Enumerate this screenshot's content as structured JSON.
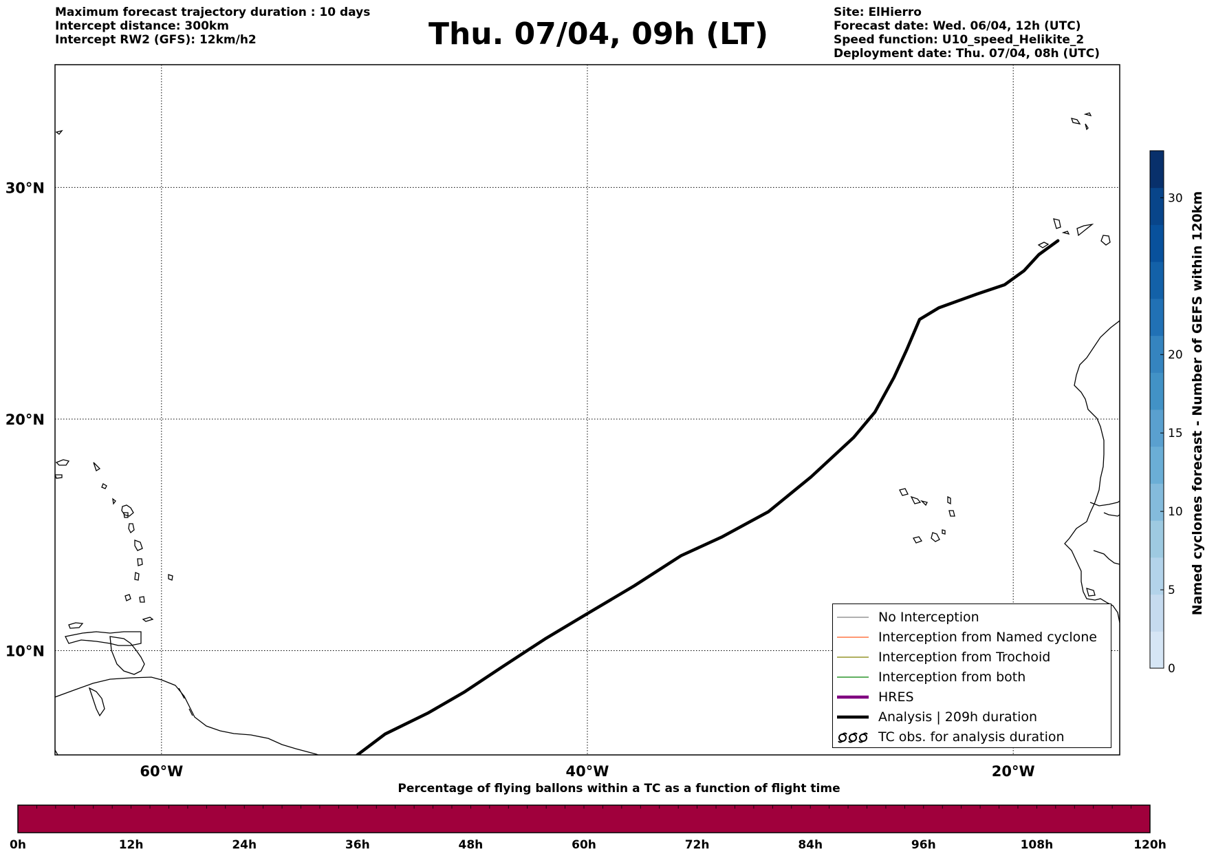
{
  "header": {
    "left_lines": [
      "Maximum forecast trajectory duration : 10 days",
      "Intercept distance: 300km",
      "Intercept RW2 (GFS):  12km/h2"
    ],
    "title": "Thu. 07/04, 09h (LT)",
    "right_lines": [
      "Site: ElHierro",
      "Forecast date: Wed. 06/04, 12h (UTC)",
      "Speed function: U10_speed_Helikite_2",
      "Deployment date: Thu. 07/04, 08h (UTC)"
    ]
  },
  "map": {
    "lat_labels": [
      {
        "lat": 30,
        "label": "30°N"
      },
      {
        "lat": 20,
        "label": "20°N"
      },
      {
        "lat": 10,
        "label": "10°N"
      }
    ],
    "lon_labels": [
      {
        "lon": -60,
        "label": "60°W"
      },
      {
        "lon": -40,
        "label": "40°W"
      },
      {
        "lon": -20,
        "label": "20°W"
      }
    ],
    "extent": {
      "lon_min": -65,
      "lon_max": -15,
      "lat_min": 5.5,
      "lat_max": 35.3
    },
    "trajectory": [
      [
        -50.8,
        5.5
      ],
      [
        -49.5,
        6.4
      ],
      [
        -47.5,
        7.3
      ],
      [
        -45.8,
        8.2
      ],
      [
        -44.0,
        9.3
      ],
      [
        -42.0,
        10.5
      ],
      [
        -40.0,
        11.6
      ],
      [
        -37.8,
        12.8
      ],
      [
        -35.6,
        14.1
      ],
      [
        -33.7,
        14.9
      ],
      [
        -31.5,
        16.0
      ],
      [
        -29.5,
        17.5
      ],
      [
        -27.5,
        19.2
      ],
      [
        -26.5,
        20.3
      ],
      [
        -25.6,
        21.8
      ],
      [
        -25.0,
        23.0
      ],
      [
        -24.4,
        24.3
      ],
      [
        -23.5,
        24.8
      ],
      [
        -21.7,
        25.4
      ],
      [
        -20.4,
        25.8
      ],
      [
        -19.5,
        26.4
      ],
      [
        -18.8,
        27.1
      ],
      [
        -17.9,
        27.7
      ]
    ],
    "colors": {
      "trajectory": "#000000",
      "hres": "#800080",
      "no_interception": "#808080",
      "named_cyclone": "#ff5a1e",
      "trochoid": "#808000",
      "both": "#008000"
    }
  },
  "legend": {
    "items": [
      {
        "label": "No Interception",
        "swatch": "thin-line",
        "color": "#808080"
      },
      {
        "label": "Interception from Named cyclone",
        "swatch": "thin-line",
        "color": "#ff5a1e"
      },
      {
        "label": "Interception from Trochoid",
        "swatch": "thin-line",
        "color": "#808000"
      },
      {
        "label": "Interception from both",
        "swatch": "thin-line",
        "color": "#008000"
      },
      {
        "label": "HRES",
        "swatch": "thick-line",
        "color": "#800080"
      },
      {
        "label": "Analysis | 209h duration",
        "swatch": "thick-line",
        "color": "#000000"
      },
      {
        "label": "TC obs. for analysis duration",
        "swatch": "cyclone-icons",
        "color": "#000000"
      }
    ]
  },
  "colorbar": {
    "title": "Named cyclones forecast - Number of GEFS within 120km",
    "ticks": [
      0,
      5,
      10,
      15,
      20,
      30
    ],
    "max": 33,
    "colors": [
      "#d6e6f5",
      "#c6dbef",
      "#b3d3ea",
      "#9ecae1",
      "#84bbdc",
      "#6baed6",
      "#5aa0cf",
      "#4292c6",
      "#3584bf",
      "#2171b5",
      "#1361a8",
      "#08519c",
      "#08458a",
      "#08306b"
    ]
  },
  "percentage_bar": {
    "title": "Percentage of flying ballons within a TC as a function of flight time",
    "ticks": [
      "0h",
      "12h",
      "24h",
      "36h",
      "48h",
      "60h",
      "72h",
      "84h",
      "96h",
      "108h",
      "120h"
    ],
    "fill_color": "#a0003c"
  }
}
